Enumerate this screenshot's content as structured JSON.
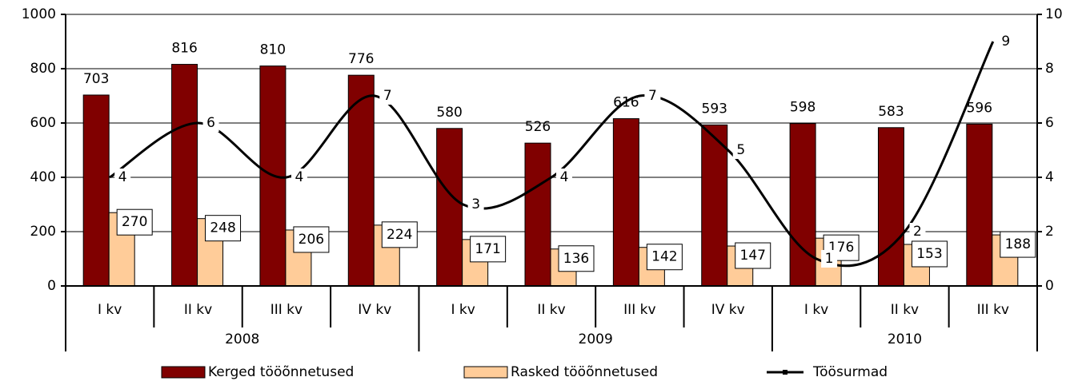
{
  "chart_data": {
    "type": "bar-line",
    "groups": [
      {
        "name": "2008",
        "categories": [
          "I kv",
          "II kv",
          "III kv",
          "IV kv"
        ]
      },
      {
        "name": "2009",
        "categories": [
          "I kv",
          "II kv",
          "III kv",
          "IV kv"
        ]
      },
      {
        "name": "2010",
        "categories": [
          "I kv",
          "II kv",
          "III kv"
        ]
      }
    ],
    "series": [
      {
        "name": "Kerged tööõnnetused",
        "type": "bar",
        "color": "#800000",
        "values": [
          703,
          816,
          810,
          776,
          580,
          526,
          616,
          593,
          598,
          583,
          596
        ]
      },
      {
        "name": "Rasked tööõnnetused",
        "type": "bar",
        "color": "#ffcc99",
        "values": [
          270,
          248,
          206,
          224,
          171,
          136,
          142,
          147,
          176,
          153,
          188
        ]
      },
      {
        "name": "Töösurmad",
        "type": "line",
        "axis": "y2",
        "color": "#000000",
        "values": [
          4,
          6,
          4,
          7,
          3,
          4,
          7,
          5,
          1,
          2,
          9
        ]
      }
    ],
    "ylim": [
      0,
      1000
    ],
    "yticks": [
      0,
      200,
      400,
      600,
      800,
      1000
    ],
    "y2lim": [
      0,
      10
    ],
    "y2ticks": [
      0,
      2,
      4,
      6,
      8,
      10
    ],
    "grid": true,
    "legend": "bottom"
  }
}
